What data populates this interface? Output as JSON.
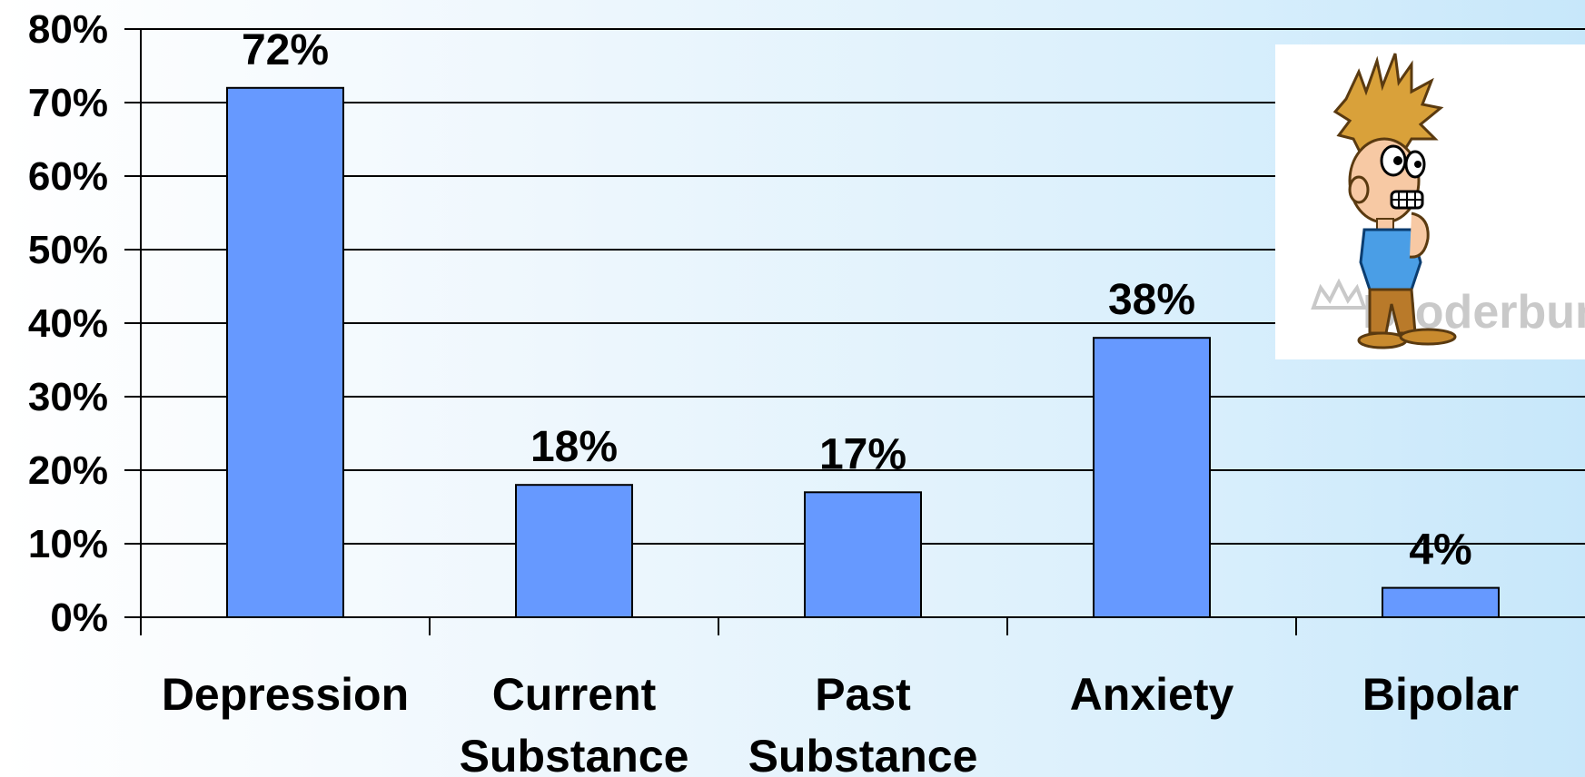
{
  "chart_data": {
    "type": "bar",
    "title": "",
    "xlabel": "",
    "ylabel": "",
    "categories": [
      [
        "Depression"
      ],
      [
        "Current",
        "Substance"
      ],
      [
        "Past",
        "Substance"
      ],
      [
        "Anxiety"
      ],
      [
        "Bipolar"
      ]
    ],
    "values": [
      72,
      18,
      17,
      38,
      4
    ],
    "data_labels": [
      "72%",
      "18%",
      "17%",
      "38%",
      "4%"
    ],
    "y_ticks": [
      "0%",
      "10%",
      "20%",
      "30%",
      "40%",
      "50%",
      "60%",
      "70%",
      "80%"
    ],
    "ylim": [
      0,
      80
    ],
    "grid": true,
    "legend": "none",
    "colors": {
      "bar": "#6699ff",
      "bar_edge": "#000000",
      "grid": "#000000"
    }
  },
  "cartoon": {
    "icon": "stressed-man-cartoon",
    "watermark": "Broderbund"
  }
}
